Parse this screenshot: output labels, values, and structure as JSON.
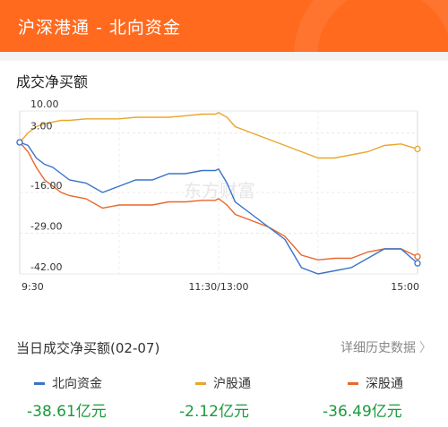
{
  "header": {
    "title": "沪深港通 - 北向资金"
  },
  "section_title": "成交净买额",
  "watermark": "东方财富",
  "summary": {
    "title": "当日成交净买额(02-07)",
    "detail_link": "详细历史数据",
    "items": [
      {
        "name": "北向资金",
        "value": "-38.61亿元",
        "color": "#3a73c9"
      },
      {
        "name": "沪股通",
        "value": "-2.12亿元",
        "color": "#e9a62b"
      },
      {
        "name": "深股通",
        "value": "-36.49亿元",
        "color": "#e9672b"
      }
    ]
  },
  "chart_data": {
    "type": "line",
    "ylim": [
      -42,
      10
    ],
    "ytick_labels": [
      "10.00",
      "3.00",
      "-16.00",
      "-29.00",
      "-42.00"
    ],
    "yticks": [
      10,
      3,
      -16,
      -29,
      -42
    ],
    "xtick_labels": [
      "9:30",
      "11:30/13:00",
      "15:00"
    ],
    "x_range_min": [
      0,
      240
    ],
    "series": [
      {
        "name": "沪股通",
        "color": "#e9a62b",
        "x": [
          0,
          5,
          10,
          15,
          20,
          25,
          30,
          40,
          50,
          60,
          70,
          80,
          90,
          100,
          110,
          118,
          120,
          125,
          130,
          140,
          150,
          160,
          170,
          180,
          190,
          200,
          210,
          220,
          230,
          240
        ],
        "y": [
          0,
          3,
          5,
          6,
          6.5,
          7,
          7,
          7.5,
          7.5,
          7.5,
          8,
          8,
          8,
          8.5,
          9,
          9,
          9.5,
          8,
          5,
          3,
          1,
          -1,
          -3,
          -5,
          -5,
          -4,
          -3,
          -1,
          -0.5,
          -2.12
        ]
      },
      {
        "name": "深股通",
        "color": "#e9672b",
        "x": [
          0,
          5,
          10,
          15,
          20,
          25,
          30,
          40,
          50,
          60,
          70,
          80,
          90,
          100,
          110,
          118,
          120,
          125,
          130,
          140,
          150,
          160,
          170,
          180,
          190,
          200,
          210,
          220,
          230,
          240
        ],
        "y": [
          0,
          -3,
          -8,
          -12,
          -14,
          -16,
          -17,
          -18,
          -21,
          -20,
          -20,
          -20,
          -19,
          -19,
          -18.5,
          -18.5,
          -18,
          -20,
          -23,
          -25,
          -27,
          -30,
          -36,
          -37.5,
          -37,
          -37,
          -35,
          -34,
          -34,
          -36.49
        ]
      },
      {
        "name": "北向资金",
        "color": "#3a73c9",
        "x": [
          0,
          5,
          10,
          15,
          20,
          25,
          30,
          40,
          50,
          60,
          70,
          80,
          90,
          100,
          110,
          118,
          120,
          125,
          130,
          140,
          150,
          160,
          170,
          180,
          190,
          200,
          210,
          220,
          230,
          240
        ],
        "y": [
          0,
          -1,
          -5,
          -7,
          -8,
          -10,
          -12,
          -13,
          -16,
          -14,
          -12,
          -12,
          -10,
          -10,
          -9,
          -9,
          -8.5,
          -13,
          -19,
          -23,
          -27,
          -31,
          -40,
          -42,
          -41,
          -40,
          -37,
          -34,
          -34,
          -38.61
        ]
      }
    ]
  }
}
